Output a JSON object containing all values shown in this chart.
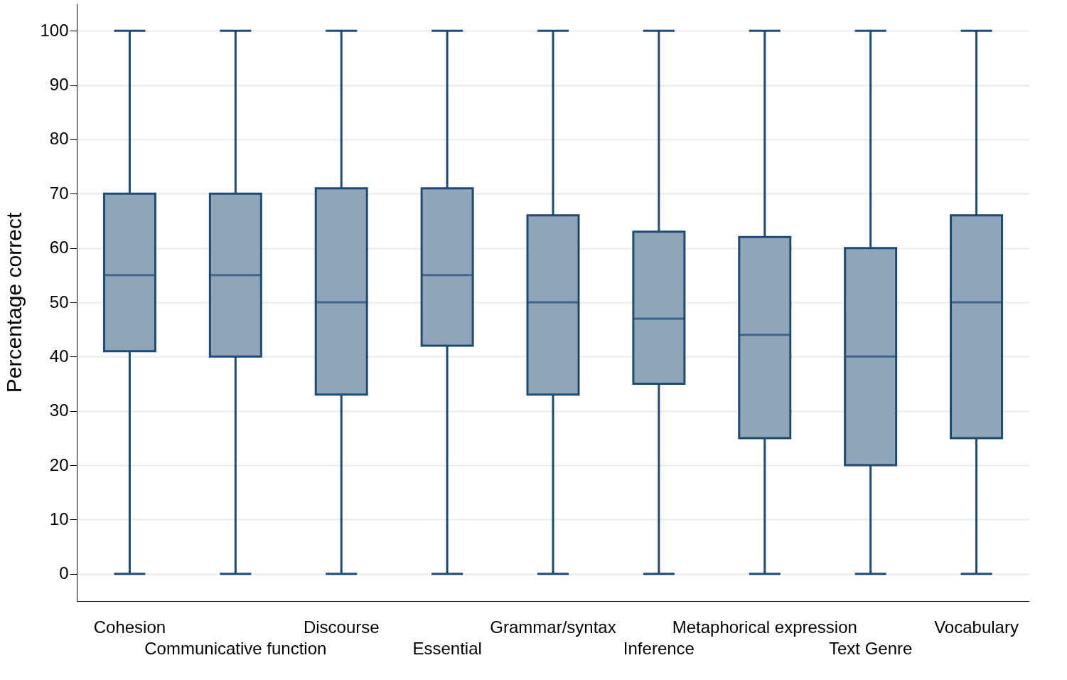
{
  "chart_data": {
    "type": "box",
    "ylabel": "Percentage correct",
    "categories": [
      "Cohesion",
      "Communicative function",
      "Discourse",
      "Essential",
      "Grammar/syntax",
      "Inference",
      "Metaphorical expression",
      "Text Genre",
      "Vocabulary"
    ],
    "boxes": [
      {
        "low": 0,
        "q1": 41,
        "median": 55,
        "q3": 70,
        "high": 100
      },
      {
        "low": 0,
        "q1": 40,
        "median": 55,
        "q3": 70,
        "high": 100
      },
      {
        "low": 0,
        "q1": 33,
        "median": 50,
        "q3": 71,
        "high": 100
      },
      {
        "low": 0,
        "q1": 42,
        "median": 55,
        "q3": 71,
        "high": 100
      },
      {
        "low": 0,
        "q1": 33,
        "median": 50,
        "q3": 66,
        "high": 100
      },
      {
        "low": 0,
        "q1": 35,
        "median": 47,
        "q3": 63,
        "high": 100
      },
      {
        "low": 0,
        "q1": 25,
        "median": 44,
        "q3": 62,
        "high": 100
      },
      {
        "low": 0,
        "q1": 20,
        "median": 40,
        "q3": 60,
        "high": 100
      },
      {
        "low": 0,
        "q1": 25,
        "median": 50,
        "q3": 66,
        "high": 100
      }
    ],
    "color": "#8fa5b9",
    "ylim": [
      -5,
      105
    ],
    "yticks": [
      0,
      10,
      20,
      30,
      40,
      50,
      60,
      70,
      80,
      90,
      100
    ],
    "grid": "y"
  }
}
